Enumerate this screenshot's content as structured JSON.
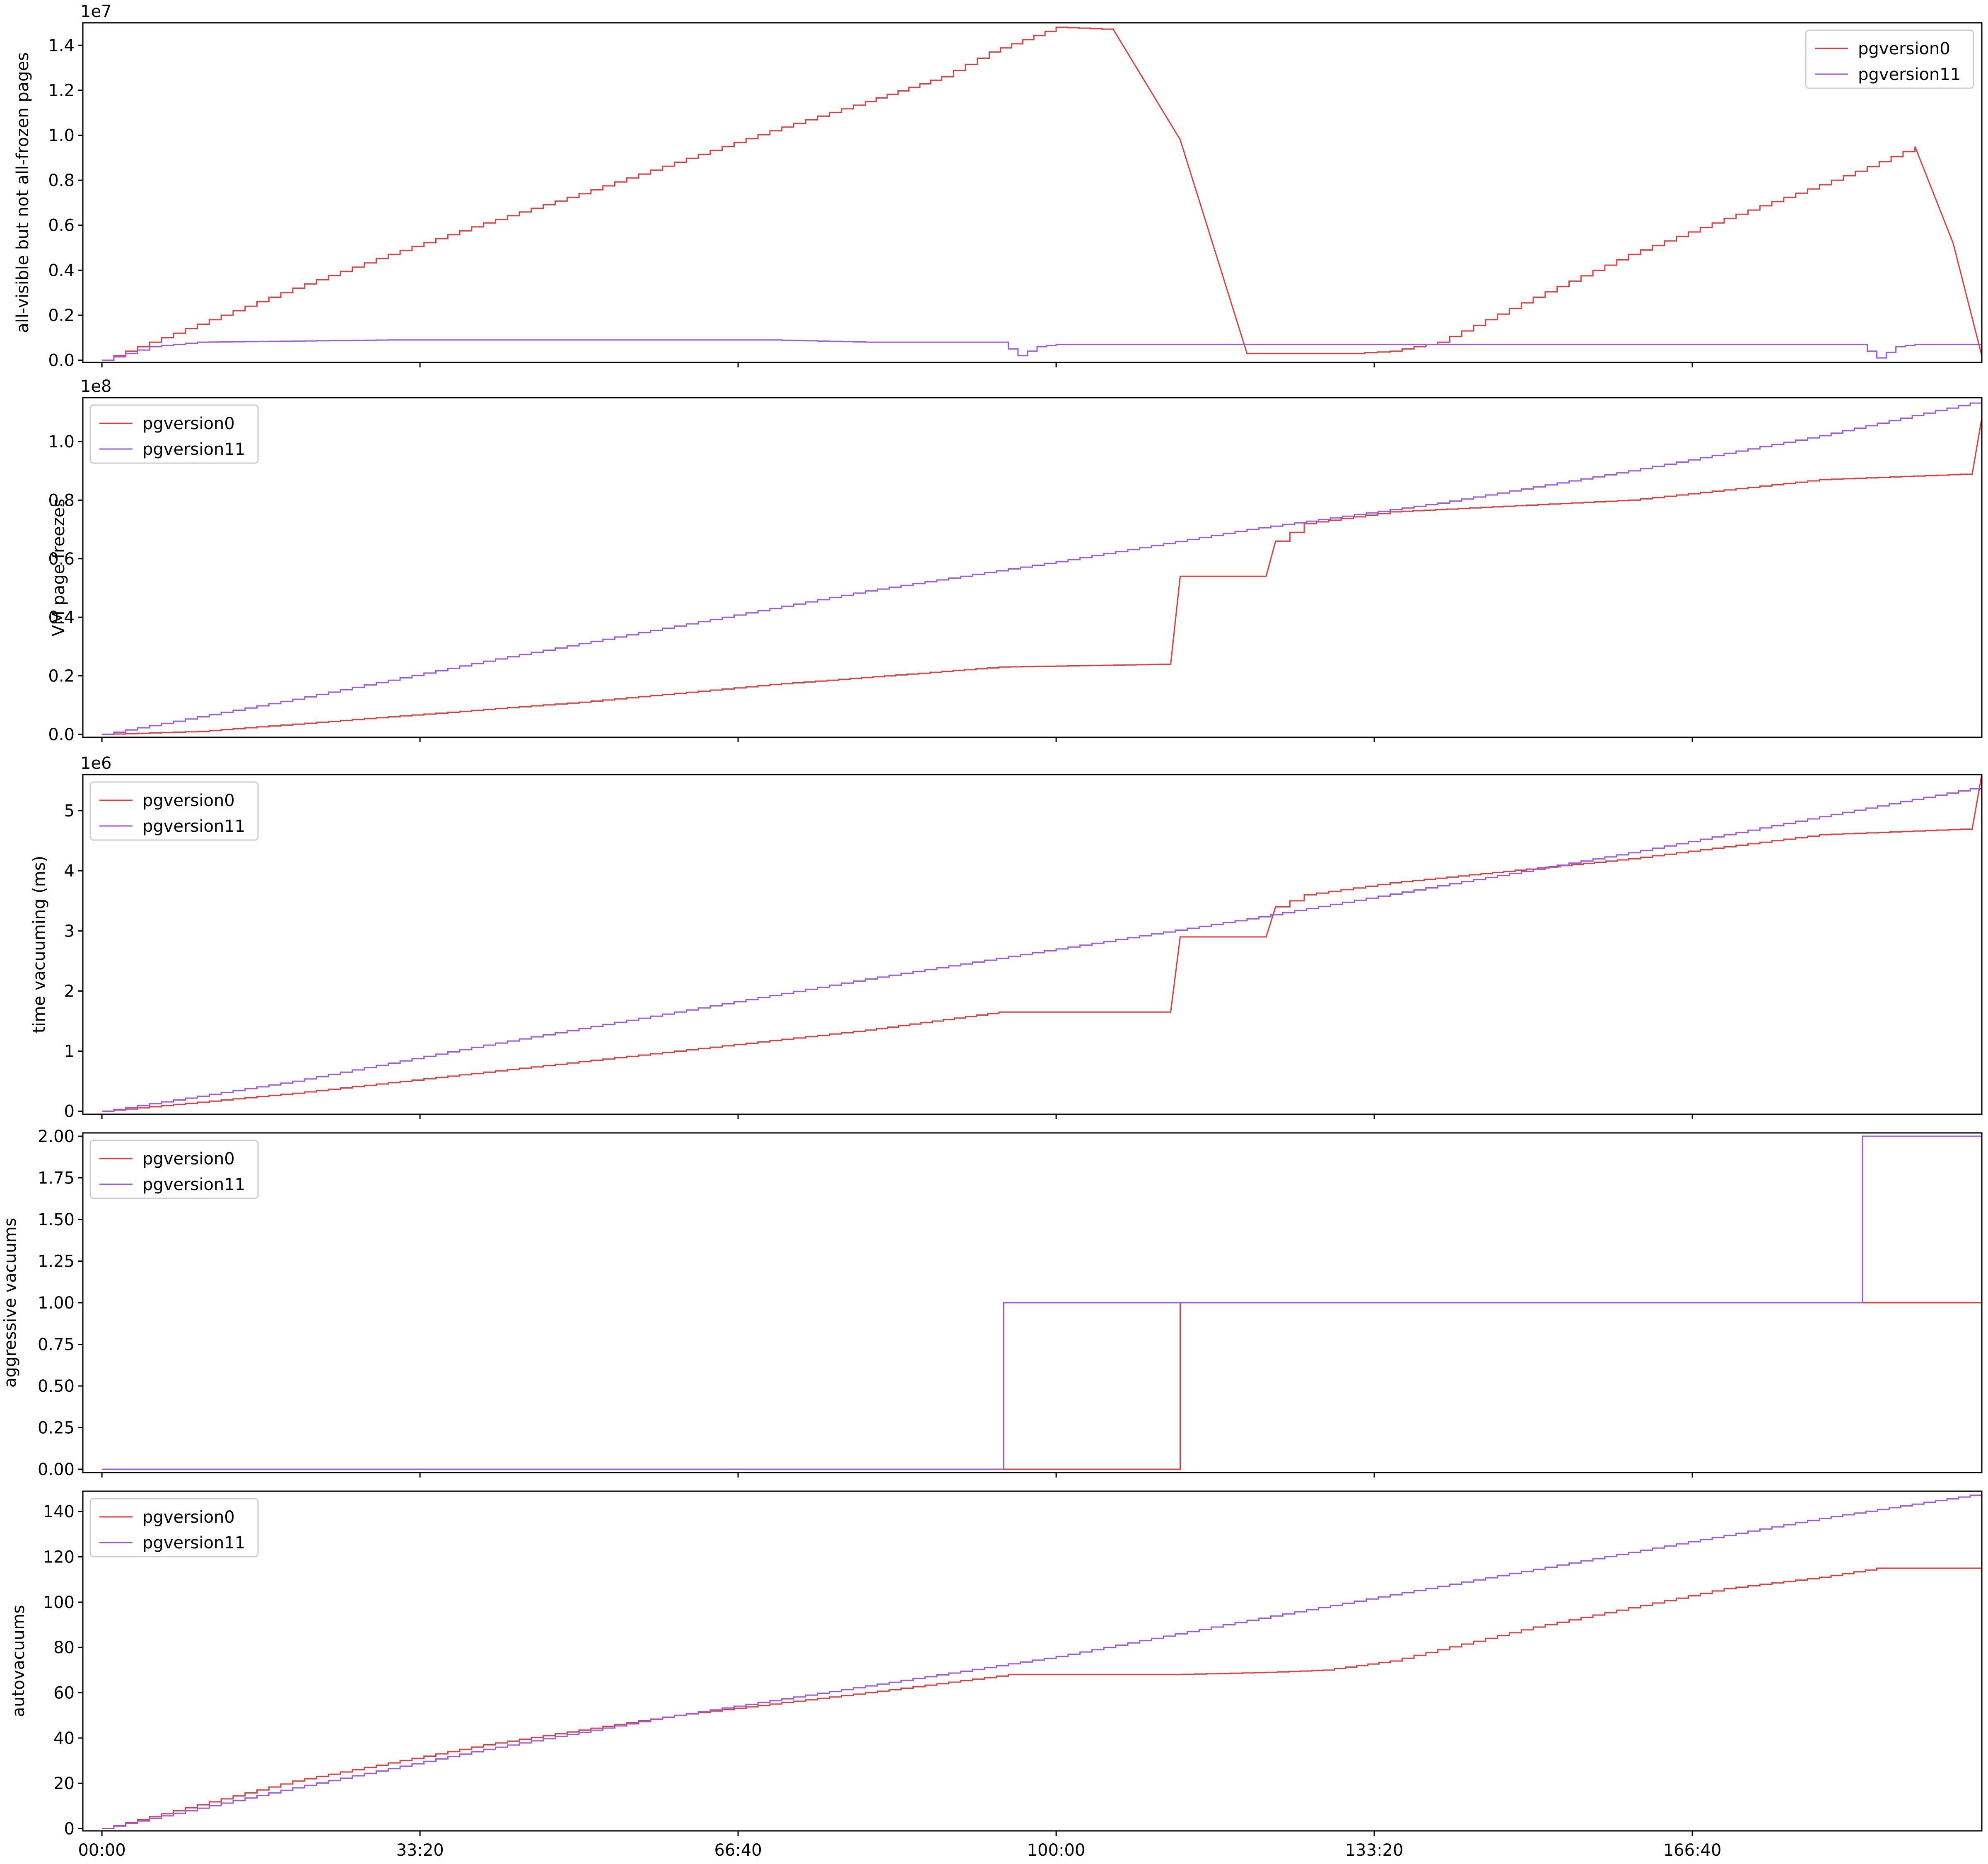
{
  "colors": {
    "pgversion0": "#e8393a",
    "pgversion11": "#9b55f5",
    "frame": "#000000"
  },
  "x_ticks": [
    "00:00",
    "33:20",
    "66:40",
    "100:00",
    "133:20",
    "166:40"
  ],
  "chart_data": [
    {
      "type": "line",
      "ylabel": "all-visible but not all-frozen pages",
      "offset": "1e7",
      "yticks": [
        "0.0",
        "0.2",
        "0.4",
        "0.6",
        "0.8",
        "1.0",
        "1.2",
        "1.4"
      ],
      "ylim": [
        -0.01,
        1.5
      ],
      "legend_position": "upper right",
      "x_unit": "minutes",
      "xlim": [
        -2,
        197
      ],
      "series": [
        {
          "name": "pgversion0",
          "x": [
            0,
            5,
            10,
            20,
            30,
            40,
            50,
            60,
            70,
            80,
            88,
            93,
            100,
            106,
            113,
            120,
            125,
            131,
            135,
            140,
            150,
            160,
            170,
            180,
            185,
            190,
            194,
            197
          ],
          "y": [
            0,
            0.08,
            0.16,
            0.32,
            0.47,
            0.61,
            0.74,
            0.88,
            1.02,
            1.15,
            1.26,
            1.37,
            1.48,
            1.47,
            0.98,
            0.03,
            0.03,
            0.03,
            0.04,
            0.08,
            0.28,
            0.47,
            0.63,
            0.78,
            0.86,
            0.95,
            0.52,
            0.02
          ]
        },
        {
          "name": "pgversion11",
          "x": [
            0,
            5,
            10,
            30,
            50,
            70,
            80,
            90,
            94,
            96,
            98,
            100,
            110,
            130,
            160,
            180,
            184,
            186,
            188,
            190,
            197
          ],
          "y": [
            0,
            0.06,
            0.08,
            0.09,
            0.09,
            0.09,
            0.08,
            0.08,
            0.08,
            0.02,
            0.06,
            0.07,
            0.07,
            0.07,
            0.07,
            0.07,
            0.07,
            0.01,
            0.06,
            0.07,
            0.07
          ]
        }
      ]
    },
    {
      "type": "line",
      "ylabel": "VM page freezes",
      "offset": "1e8",
      "yticks": [
        "0.0",
        "0.2",
        "0.4",
        "0.6",
        "0.8",
        "1.0"
      ],
      "ylim": [
        -0.01,
        1.15
      ],
      "legend_position": "upper left",
      "x_unit": "minutes",
      "xlim": [
        -2,
        197
      ],
      "series": [
        {
          "name": "pgversion0",
          "x": [
            0,
            10,
            30,
            50,
            70,
            94,
            112,
            113,
            122,
            123,
            126,
            135,
            160,
            180,
            196,
            197
          ],
          "y": [
            0,
            0.01,
            0.06,
            0.11,
            0.17,
            0.23,
            0.24,
            0.54,
            0.54,
            0.66,
            0.72,
            0.76,
            0.8,
            0.87,
            0.89,
            1.08
          ]
        },
        {
          "name": "pgversion11",
          "x": [
            0,
            20,
            40,
            60,
            80,
            100,
            120,
            140,
            160,
            180,
            197
          ],
          "y": [
            0,
            0.12,
            0.25,
            0.37,
            0.49,
            0.59,
            0.7,
            0.79,
            0.9,
            1.02,
            1.14
          ]
        }
      ]
    },
    {
      "type": "line",
      "ylabel": "time vacuuming (ms)",
      "offset": "1e6",
      "yticks": [
        "0",
        "1",
        "2",
        "3",
        "4",
        "5"
      ],
      "ylim": [
        -0.05,
        5.6
      ],
      "legend_position": "upper left",
      "x_unit": "minutes",
      "xlim": [
        -2,
        197
      ],
      "series": [
        {
          "name": "pgversion0",
          "x": [
            0,
            20,
            40,
            60,
            80,
            94,
            112,
            113,
            122,
            123,
            126,
            135,
            160,
            180,
            196,
            197
          ],
          "y": [
            0,
            0.3,
            0.65,
            1.0,
            1.35,
            1.65,
            1.65,
            2.9,
            2.9,
            3.4,
            3.6,
            3.8,
            4.2,
            4.6,
            4.7,
            5.6
          ]
        },
        {
          "name": "pgversion11",
          "x": [
            0,
            20,
            40,
            60,
            80,
            100,
            120,
            140,
            160,
            180,
            197
          ],
          "y": [
            0,
            0.5,
            1.1,
            1.65,
            2.2,
            2.7,
            3.2,
            3.75,
            4.3,
            4.9,
            5.4
          ]
        }
      ]
    },
    {
      "type": "line",
      "ylabel": "aggressive vacuums",
      "yticks": [
        "0.00",
        "0.25",
        "0.50",
        "0.75",
        "1.00",
        "1.25",
        "1.50",
        "1.75",
        "2.00"
      ],
      "ylim": [
        -0.02,
        2.02
      ],
      "legend_position": "upper left",
      "x_unit": "minutes",
      "xlim": [
        -2,
        197
      ],
      "series": [
        {
          "name": "pgversion0",
          "x": [
            0,
            113,
            113,
            197,
            197
          ],
          "y": [
            0,
            0,
            1,
            1,
            2
          ]
        },
        {
          "name": "pgversion11",
          "x": [
            0,
            94.5,
            94.5,
            184.5,
            184.5,
            197
          ],
          "y": [
            0,
            0,
            1,
            1,
            2,
            2
          ]
        }
      ]
    },
    {
      "type": "line",
      "ylabel": "autovacuums",
      "yticks": [
        "0",
        "20",
        "40",
        "60",
        "80",
        "100",
        "120",
        "140"
      ],
      "ylim": [
        -1,
        149
      ],
      "legend_position": "upper left",
      "x_unit": "minutes",
      "xlim": [
        -2,
        197
      ],
      "series": [
        {
          "name": "pgversion0",
          "x": [
            0,
            20,
            40,
            60,
            80,
            95,
            112,
            122,
            128,
            135,
            150,
            170,
            180,
            186,
            196,
            197
          ],
          "y": [
            0,
            21,
            37,
            50,
            60,
            68,
            68,
            69,
            70,
            74,
            89,
            106,
            111,
            115,
            115,
            116
          ]
        },
        {
          "name": "pgversion11",
          "x": [
            0,
            20,
            40,
            60,
            80,
            100,
            120,
            140,
            160,
            180,
            197
          ],
          "y": [
            0,
            18,
            35,
            50,
            63,
            76,
            92,
            107,
            122,
            137,
            148
          ]
        }
      ]
    }
  ]
}
